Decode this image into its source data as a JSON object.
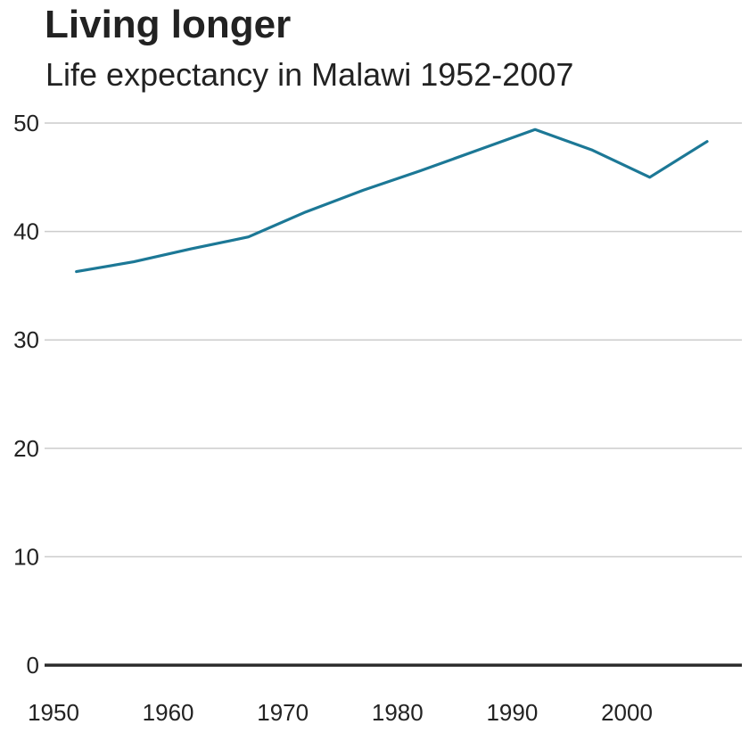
{
  "header": {
    "title": "Living longer",
    "subtitle": "Life expectancy in Malawi 1952-2007"
  },
  "colors": {
    "line": "#1c7896",
    "grid": "#cccccc",
    "baseline": "#2b2b2b",
    "text": "#222222"
  },
  "chart_data": {
    "type": "line",
    "title": "Living longer",
    "subtitle": "Life expectancy in Malawi 1952-2007",
    "xlabel": "",
    "ylabel": "",
    "x": [
      1952,
      1957,
      1962,
      1967,
      1972,
      1977,
      1982,
      1987,
      1992,
      1997,
      2002,
      2007
    ],
    "series": [
      {
        "values": [
          36.3,
          37.2,
          38.4,
          39.5,
          41.8,
          43.8,
          45.6,
          47.5,
          49.4,
          47.5,
          45.0,
          48.3
        ]
      }
    ],
    "xlim": [
      1950,
      2010
    ],
    "ylim": [
      0,
      50
    ],
    "x_ticks": [
      1950,
      1960,
      1970,
      1980,
      1990,
      2000
    ],
    "y_ticks": [
      0,
      10,
      20,
      30,
      40,
      50
    ],
    "grid": true,
    "legend": "none"
  }
}
